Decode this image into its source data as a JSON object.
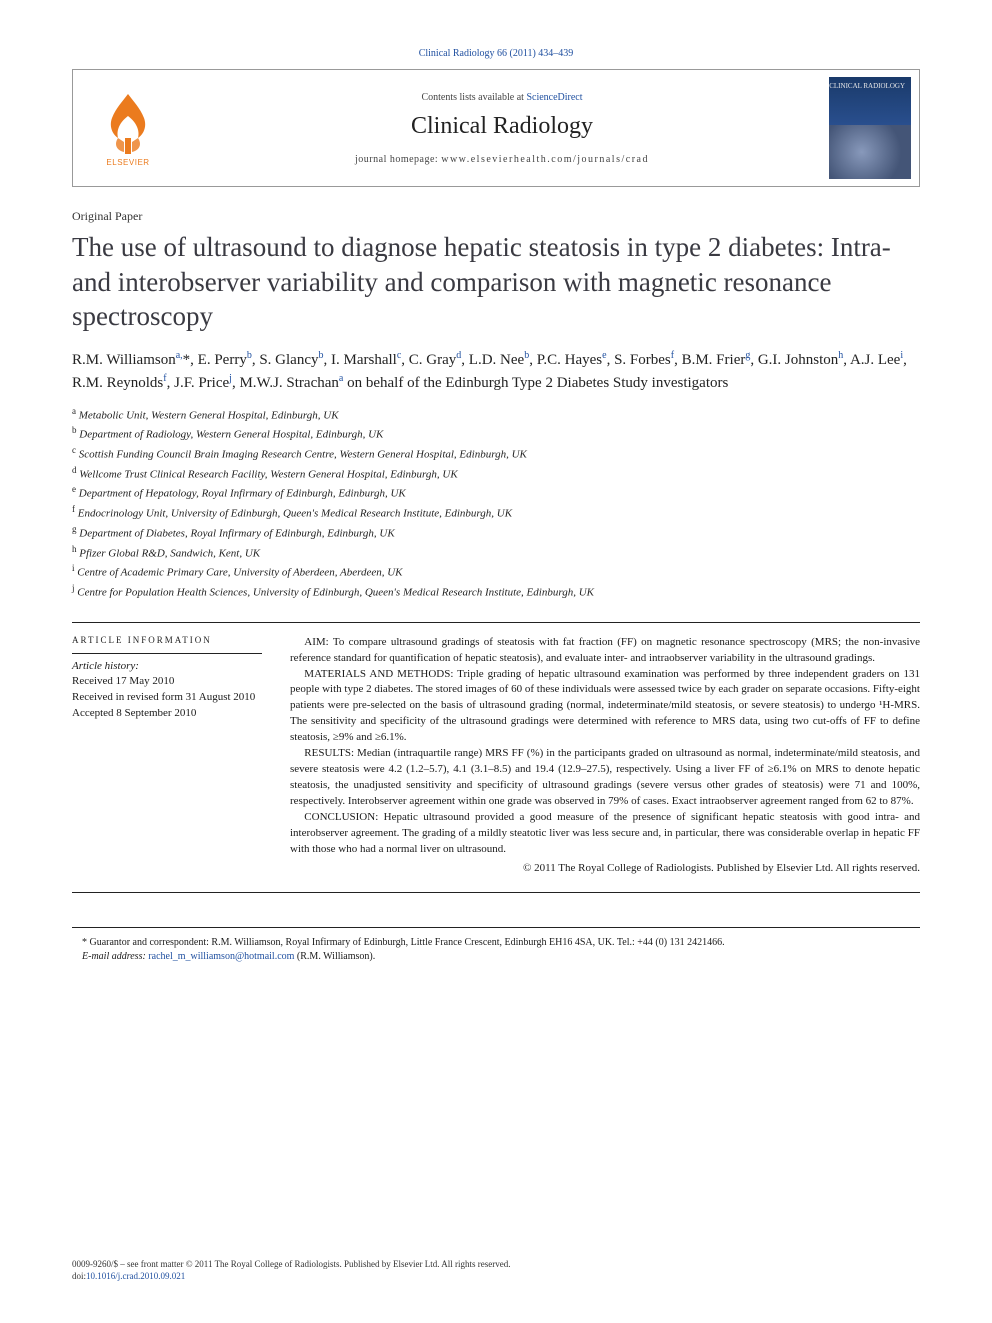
{
  "citation": "Clinical Radiology 66 (2011) 434–439",
  "header": {
    "contents_prefix": "Contents lists available at ",
    "contents_link": "ScienceDirect",
    "journal": "Clinical Radiology",
    "homepage_prefix": "journal homepage: ",
    "homepage_url": "www.elsevierhealth.com/journals/crad",
    "cover_title": "CLINICAL RADIOLOGY",
    "publisher_logo_label": "ELSEVIER"
  },
  "paper_type": "Original Paper",
  "title": "The use of ultrasound to diagnose hepatic steatosis in type 2 diabetes: Intra- and interobserver variability and comparison with magnetic resonance spectroscopy",
  "authors_html": "R.M. Williamson<sup>a,</sup><span class='corr-mark'>*</span>, E. Perry<sup>b</sup>, S. Glancy<sup>b</sup>, I. Marshall<sup>c</sup>, C. Gray<sup>d</sup>, L.D. Nee<sup>b</sup>, P.C. Hayes<sup>e</sup>, S. Forbes<sup>f</sup>, B.M. Frier<sup>g</sup>, G.I. Johnston<sup>h</sup>, A.J. Lee<sup>i</sup>, R.M. Reynolds<sup>f</sup>, J.F. Price<sup>j</sup>, M.W.J. Strachan<sup>a</sup> on behalf of the Edinburgh Type 2 Diabetes Study investigators",
  "affiliations": [
    {
      "key": "a",
      "text": "Metabolic Unit, Western General Hospital, Edinburgh, UK"
    },
    {
      "key": "b",
      "text": "Department of Radiology, Western General Hospital, Edinburgh, UK"
    },
    {
      "key": "c",
      "text": "Scottish Funding Council Brain Imaging Research Centre, Western General Hospital, Edinburgh, UK"
    },
    {
      "key": "d",
      "text": "Wellcome Trust Clinical Research Facility, Western General Hospital, Edinburgh, UK"
    },
    {
      "key": "e",
      "text": "Department of Hepatology, Royal Infirmary of Edinburgh, Edinburgh, UK"
    },
    {
      "key": "f",
      "text": "Endocrinology Unit, University of Edinburgh, Queen's Medical Research Institute, Edinburgh, UK"
    },
    {
      "key": "g",
      "text": "Department of Diabetes, Royal Infirmary of Edinburgh, Edinburgh, UK"
    },
    {
      "key": "h",
      "text": "Pfizer Global R&D, Sandwich, Kent, UK"
    },
    {
      "key": "i",
      "text": "Centre of Academic Primary Care, University of Aberdeen, Aberdeen, UK"
    },
    {
      "key": "j",
      "text": "Centre for Population Health Sciences, University of Edinburgh, Queen's Medical Research Institute, Edinburgh, UK"
    }
  ],
  "article_info": {
    "heading": "ARTICLE INFORMATION",
    "history_label": "Article history:",
    "received": "Received 17 May 2010",
    "revised": "Received in revised form 31 August 2010",
    "accepted": "Accepted 8 September 2010"
  },
  "abstract": {
    "aim": "AIM: To compare ultrasound gradings of steatosis with fat fraction (FF) on magnetic resonance spectroscopy (MRS; the non-invasive reference standard for quantification of hepatic steatosis), and evaluate inter- and intraobserver variability in the ultrasound gradings.",
    "materials": "MATERIALS AND METHODS: Triple grading of hepatic ultrasound examination was performed by three independent graders on 131 people with type 2 diabetes. The stored images of 60 of these individuals were assessed twice by each grader on separate occasions. Fifty-eight patients were pre-selected on the basis of ultrasound grading (normal, indeterminate/mild steatosis, or severe steatosis) to undergo ¹H-MRS. The sensitivity and specificity of the ultrasound gradings were determined with reference to MRS data, using two cut-offs of FF to define steatosis, ≥9% and ≥6.1%.",
    "results": "RESULTS: Median (intraquartile range) MRS FF (%) in the participants graded on ultrasound as normal, indeterminate/mild steatosis, and severe steatosis were 4.2 (1.2–5.7), 4.1 (3.1–8.5) and 19.4 (12.9–27.5), respectively. Using a liver FF of ≥6.1% on MRS to denote hepatic steatosis, the unadjusted sensitivity and specificity of ultrasound gradings (severe versus other grades of steatosis) were 71 and 100%, respectively. Interobserver agreement within one grade was observed in 79% of cases. Exact intraobserver agreement ranged from 62 to 87%.",
    "conclusion": "CONCLUSION: Hepatic ultrasound provided a good measure of the presence of significant hepatic steatosis with good intra- and interobserver agreement. The grading of a mildly steatotic liver was less secure and, in particular, there was considerable overlap in hepatic FF with those who had a normal liver on ultrasound.",
    "copyright": "© 2011 The Royal College of Radiologists. Published by Elsevier Ltd. All rights reserved."
  },
  "footnote": {
    "mark": "*",
    "label": "Guarantor and correspondent: ",
    "text": "R.M. Williamson, Royal Infirmary of Edinburgh, Little France Crescent, Edinburgh EH16 4SA, UK. Tel.: +44 (0) 131 2421466.",
    "email_label": "E-mail address: ",
    "email": "rachel_m_williamson@hotmail.com",
    "email_suffix": " (R.M. Williamson)."
  },
  "footer": {
    "line1": "0009-9260/$ – see front matter © 2011 The Royal College of Radiologists. Published by Elsevier Ltd. All rights reserved.",
    "doi_prefix": "doi:",
    "doi": "10.1016/j.crad.2010.09.021"
  },
  "colors": {
    "link": "#2050a0",
    "elsevier_orange": "#eb7b1e",
    "text": "#1a1a1a",
    "title_gray": "#3a3a42",
    "rule": "#222222",
    "border": "#999999"
  }
}
